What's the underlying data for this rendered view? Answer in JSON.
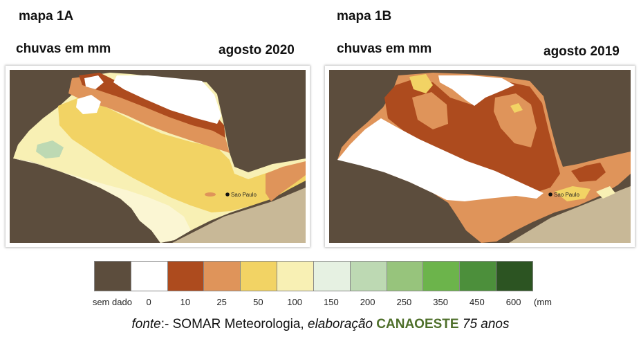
{
  "map_a": {
    "title": "mapa 1A",
    "subtitle": "chuvas em mm",
    "period": "agosto 2020",
    "city_label": "Sao Paulo"
  },
  "map_b": {
    "title": "mapa 1B",
    "subtitle": "chuvas em mm",
    "period": "agosto 2019",
    "city_label": "Sao Paulo"
  },
  "legend": {
    "classes": [
      {
        "label": "sem dado",
        "color": "#5c4d3d"
      },
      {
        "label": "0",
        "color": "#ffffff"
      },
      {
        "label": "10",
        "color": "#ad4b1e"
      },
      {
        "label": "25",
        "color": "#df945a"
      },
      {
        "label": "50",
        "color": "#f2d364"
      },
      {
        "label": "100",
        "color": "#f8f0b4"
      },
      {
        "label": "150",
        "color": "#e6f1e2"
      },
      {
        "label": "200",
        "color": "#bdd9b3"
      },
      {
        "label": "250",
        "color": "#97c47c"
      },
      {
        "label": "350",
        "color": "#6cb44b"
      },
      {
        "label": "450",
        "color": "#4c8f3b"
      },
      {
        "label": "600",
        "color": "#2c5422"
      }
    ],
    "unit": "(mm"
  },
  "source": {
    "part1": "fonte",
    "part2": ":- SOMAR Meteorologia, ",
    "part3": "elaboração ",
    "part4": "CANAOESTE",
    "part5": " 75 anos"
  }
}
